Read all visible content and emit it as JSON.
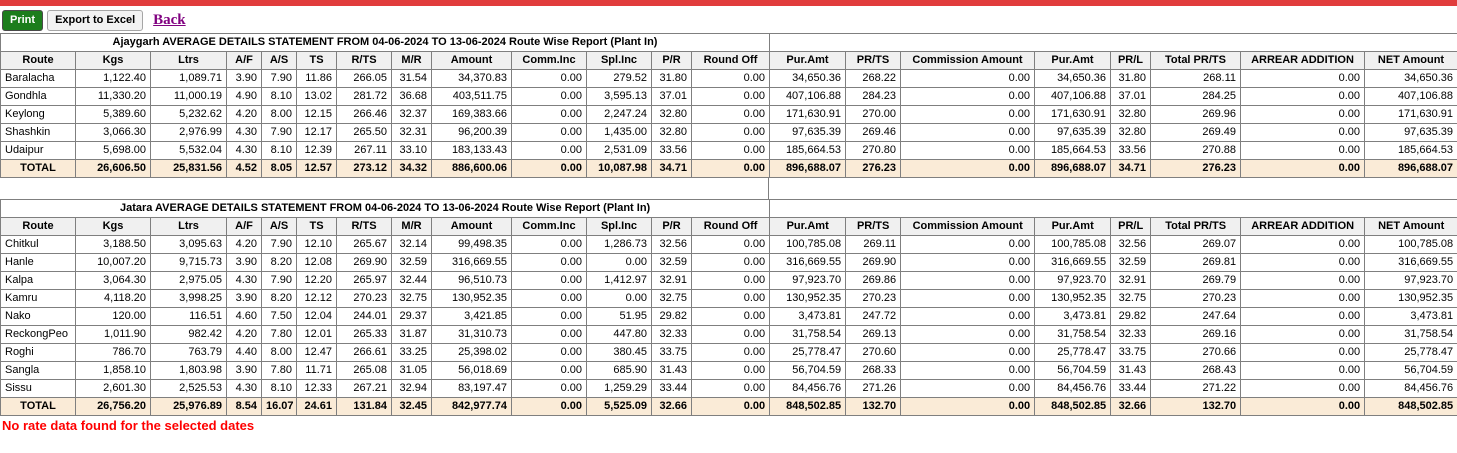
{
  "toolbar": {
    "print_label": "Print",
    "export_label": "Export to Excel",
    "back_label": "Back"
  },
  "report": {
    "columns": [
      "Route",
      "Kgs",
      "Ltrs",
      "A/F",
      "A/S",
      "TS",
      "R/TS",
      "M/R",
      "Amount",
      "Comm.Inc",
      "Spl.Inc",
      "P/R",
      "Round Off",
      "Pur.Amt",
      "PR/TS",
      "Commission Amount",
      "Pur.Amt",
      "PR/L",
      "Total PR/TS",
      "ARREAR ADDITION",
      "NET Amount"
    ],
    "tables": [
      {
        "title": "Ajaygarh AVERAGE DETAILS STATEMENT FROM 04-06-2024 TO 13-06-2024 Route Wise Report (Plant In)",
        "rows": [
          [
            "Baralacha",
            "1,122.40",
            "1,089.71",
            "3.90",
            "7.90",
            "11.86",
            "266.05",
            "31.54",
            "34,370.83",
            "0.00",
            "279.52",
            "31.80",
            "0.00",
            "34,650.36",
            "268.22",
            "0.00",
            "34,650.36",
            "31.80",
            "268.11",
            "0.00",
            "34,650.36"
          ],
          [
            "Gondhla",
            "11,330.20",
            "11,000.19",
            "4.90",
            "8.10",
            "13.02",
            "281.72",
            "36.68",
            "403,511.75",
            "0.00",
            "3,595.13",
            "37.01",
            "0.00",
            "407,106.88",
            "284.23",
            "0.00",
            "407,106.88",
            "37.01",
            "284.25",
            "0.00",
            "407,106.88"
          ],
          [
            "Keylong",
            "5,389.60",
            "5,232.62",
            "4.20",
            "8.00",
            "12.15",
            "266.46",
            "32.37",
            "169,383.66",
            "0.00",
            "2,247.24",
            "32.80",
            "0.00",
            "171,630.91",
            "270.00",
            "0.00",
            "171,630.91",
            "32.80",
            "269.96",
            "0.00",
            "171,630.91"
          ],
          [
            "Shashkin",
            "3,066.30",
            "2,976.99",
            "4.30",
            "7.90",
            "12.17",
            "265.50",
            "32.31",
            "96,200.39",
            "0.00",
            "1,435.00",
            "32.80",
            "0.00",
            "97,635.39",
            "269.46",
            "0.00",
            "97,635.39",
            "32.80",
            "269.49",
            "0.00",
            "97,635.39"
          ],
          [
            "Udaipur",
            "5,698.00",
            "5,532.04",
            "4.30",
            "8.10",
            "12.39",
            "267.11",
            "33.10",
            "183,133.43",
            "0.00",
            "2,531.09",
            "33.56",
            "0.00",
            "185,664.53",
            "270.80",
            "0.00",
            "185,664.53",
            "33.56",
            "270.88",
            "0.00",
            "185,664.53"
          ]
        ],
        "total": [
          "TOTAL",
          "26,606.50",
          "25,831.56",
          "4.52",
          "8.05",
          "12.57",
          "273.12",
          "34.32",
          "886,600.06",
          "0.00",
          "10,087.98",
          "34.71",
          "0.00",
          "896,688.07",
          "276.23",
          "0.00",
          "896,688.07",
          "34.71",
          "276.23",
          "0.00",
          "896,688.07"
        ]
      },
      {
        "title": "Jatara AVERAGE DETAILS STATEMENT FROM 04-06-2024 TO 13-06-2024 Route Wise Report (Plant In)",
        "rows": [
          [
            "Chitkul",
            "3,188.50",
            "3,095.63",
            "4.20",
            "7.90",
            "12.10",
            "265.67",
            "32.14",
            "99,498.35",
            "0.00",
            "1,286.73",
            "32.56",
            "0.00",
            "100,785.08",
            "269.11",
            "0.00",
            "100,785.08",
            "32.56",
            "269.07",
            "0.00",
            "100,785.08"
          ],
          [
            "Hanle",
            "10,007.20",
            "9,715.73",
            "3.90",
            "8.20",
            "12.08",
            "269.90",
            "32.59",
            "316,669.55",
            "0.00",
            "0.00",
            "32.59",
            "0.00",
            "316,669.55",
            "269.90",
            "0.00",
            "316,669.55",
            "32.59",
            "269.81",
            "0.00",
            "316,669.55"
          ],
          [
            "Kalpa",
            "3,064.30",
            "2,975.05",
            "4.30",
            "7.90",
            "12.20",
            "265.97",
            "32.44",
            "96,510.73",
            "0.00",
            "1,412.97",
            "32.91",
            "0.00",
            "97,923.70",
            "269.86",
            "0.00",
            "97,923.70",
            "32.91",
            "269.79",
            "0.00",
            "97,923.70"
          ],
          [
            "Kamru",
            "4,118.20",
            "3,998.25",
            "3.90",
            "8.20",
            "12.12",
            "270.23",
            "32.75",
            "130,952.35",
            "0.00",
            "0.00",
            "32.75",
            "0.00",
            "130,952.35",
            "270.23",
            "0.00",
            "130,952.35",
            "32.75",
            "270.23",
            "0.00",
            "130,952.35"
          ],
          [
            "Nako",
            "120.00",
            "116.51",
            "4.60",
            "7.50",
            "12.04",
            "244.01",
            "29.37",
            "3,421.85",
            "0.00",
            "51.95",
            "29.82",
            "0.00",
            "3,473.81",
            "247.72",
            "0.00",
            "3,473.81",
            "29.82",
            "247.64",
            "0.00",
            "3,473.81"
          ],
          [
            "ReckongPeo",
            "1,011.90",
            "982.42",
            "4.20",
            "7.80",
            "12.01",
            "265.33",
            "31.87",
            "31,310.73",
            "0.00",
            "447.80",
            "32.33",
            "0.00",
            "31,758.54",
            "269.13",
            "0.00",
            "31,758.54",
            "32.33",
            "269.16",
            "0.00",
            "31,758.54"
          ],
          [
            "Roghi",
            "786.70",
            "763.79",
            "4.40",
            "8.00",
            "12.47",
            "266.61",
            "33.25",
            "25,398.02",
            "0.00",
            "380.45",
            "33.75",
            "0.00",
            "25,778.47",
            "270.60",
            "0.00",
            "25,778.47",
            "33.75",
            "270.66",
            "0.00",
            "25,778.47"
          ],
          [
            "Sangla",
            "1,858.10",
            "1,803.98",
            "3.90",
            "7.80",
            "11.71",
            "265.08",
            "31.05",
            "56,018.69",
            "0.00",
            "685.90",
            "31.43",
            "0.00",
            "56,704.59",
            "268.33",
            "0.00",
            "56,704.59",
            "31.43",
            "268.43",
            "0.00",
            "56,704.59"
          ],
          [
            "Sissu",
            "2,601.30",
            "2,525.53",
            "4.30",
            "8.10",
            "12.33",
            "267.21",
            "32.94",
            "83,197.47",
            "0.00",
            "1,259.29",
            "33.44",
            "0.00",
            "84,456.76",
            "271.26",
            "0.00",
            "84,456.76",
            "33.44",
            "271.22",
            "0.00",
            "84,456.76"
          ]
        ],
        "total": [
          "TOTAL",
          "26,756.20",
          "25,976.89",
          "8.54",
          "16.07",
          "24.61",
          "131.84",
          "32.45",
          "842,977.74",
          "0.00",
          "5,525.09",
          "32.66",
          "0.00",
          "848,502.85",
          "132.70",
          "0.00",
          "848,502.85",
          "32.66",
          "132.70",
          "0.00",
          "848,502.85"
        ]
      }
    ],
    "footer_note": "No rate data found for the selected dates"
  },
  "colors": {
    "top_bar": "#e13c3c",
    "title_text": "#2121cb",
    "total_row_bg": "#faebd7",
    "header_bg": "#f0f0f0",
    "border": "#7f7f7f",
    "note_text": "#ff0000",
    "print_button_bg": "#1c7d1c",
    "back_link": "#800080"
  }
}
